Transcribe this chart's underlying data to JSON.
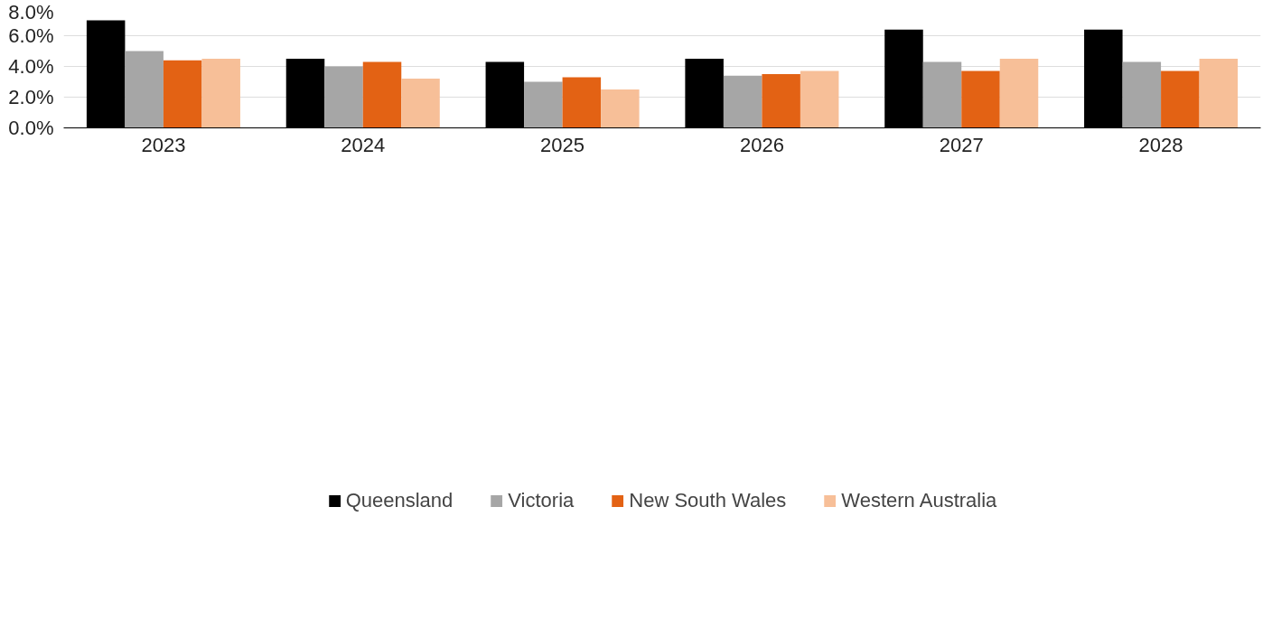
{
  "chart_data": {
    "type": "bar",
    "categories": [
      "2023",
      "2024",
      "2025",
      "2026",
      "2027",
      "2028"
    ],
    "series": [
      {
        "name": "Queensland",
        "color": "#000000",
        "values": [
          7.0,
          4.5,
          4.3,
          4.5,
          6.4,
          6.4
        ]
      },
      {
        "name": "Victoria",
        "color": "#a6a6a6",
        "values": [
          5.0,
          4.0,
          3.0,
          3.4,
          4.3,
          4.3
        ]
      },
      {
        "name": "New South Wales",
        "color": "#e36214",
        "values": [
          4.4,
          4.3,
          3.3,
          3.5,
          3.7,
          3.7
        ]
      },
      {
        "name": "Western Australia",
        "color": "#f7bf98",
        "values": [
          4.5,
          3.2,
          2.5,
          3.7,
          4.5,
          4.5
        ]
      }
    ],
    "ylim": [
      0,
      8
    ],
    "yticks": [
      {
        "value": 0,
        "label": "0.0%"
      },
      {
        "value": 2,
        "label": "2.0%"
      },
      {
        "value": 4,
        "label": "4.0%"
      },
      {
        "value": 6,
        "label": "6.0%"
      },
      {
        "value": 8,
        "label": "8.0%"
      }
    ],
    "grid": "y",
    "legend": "bottom"
  }
}
